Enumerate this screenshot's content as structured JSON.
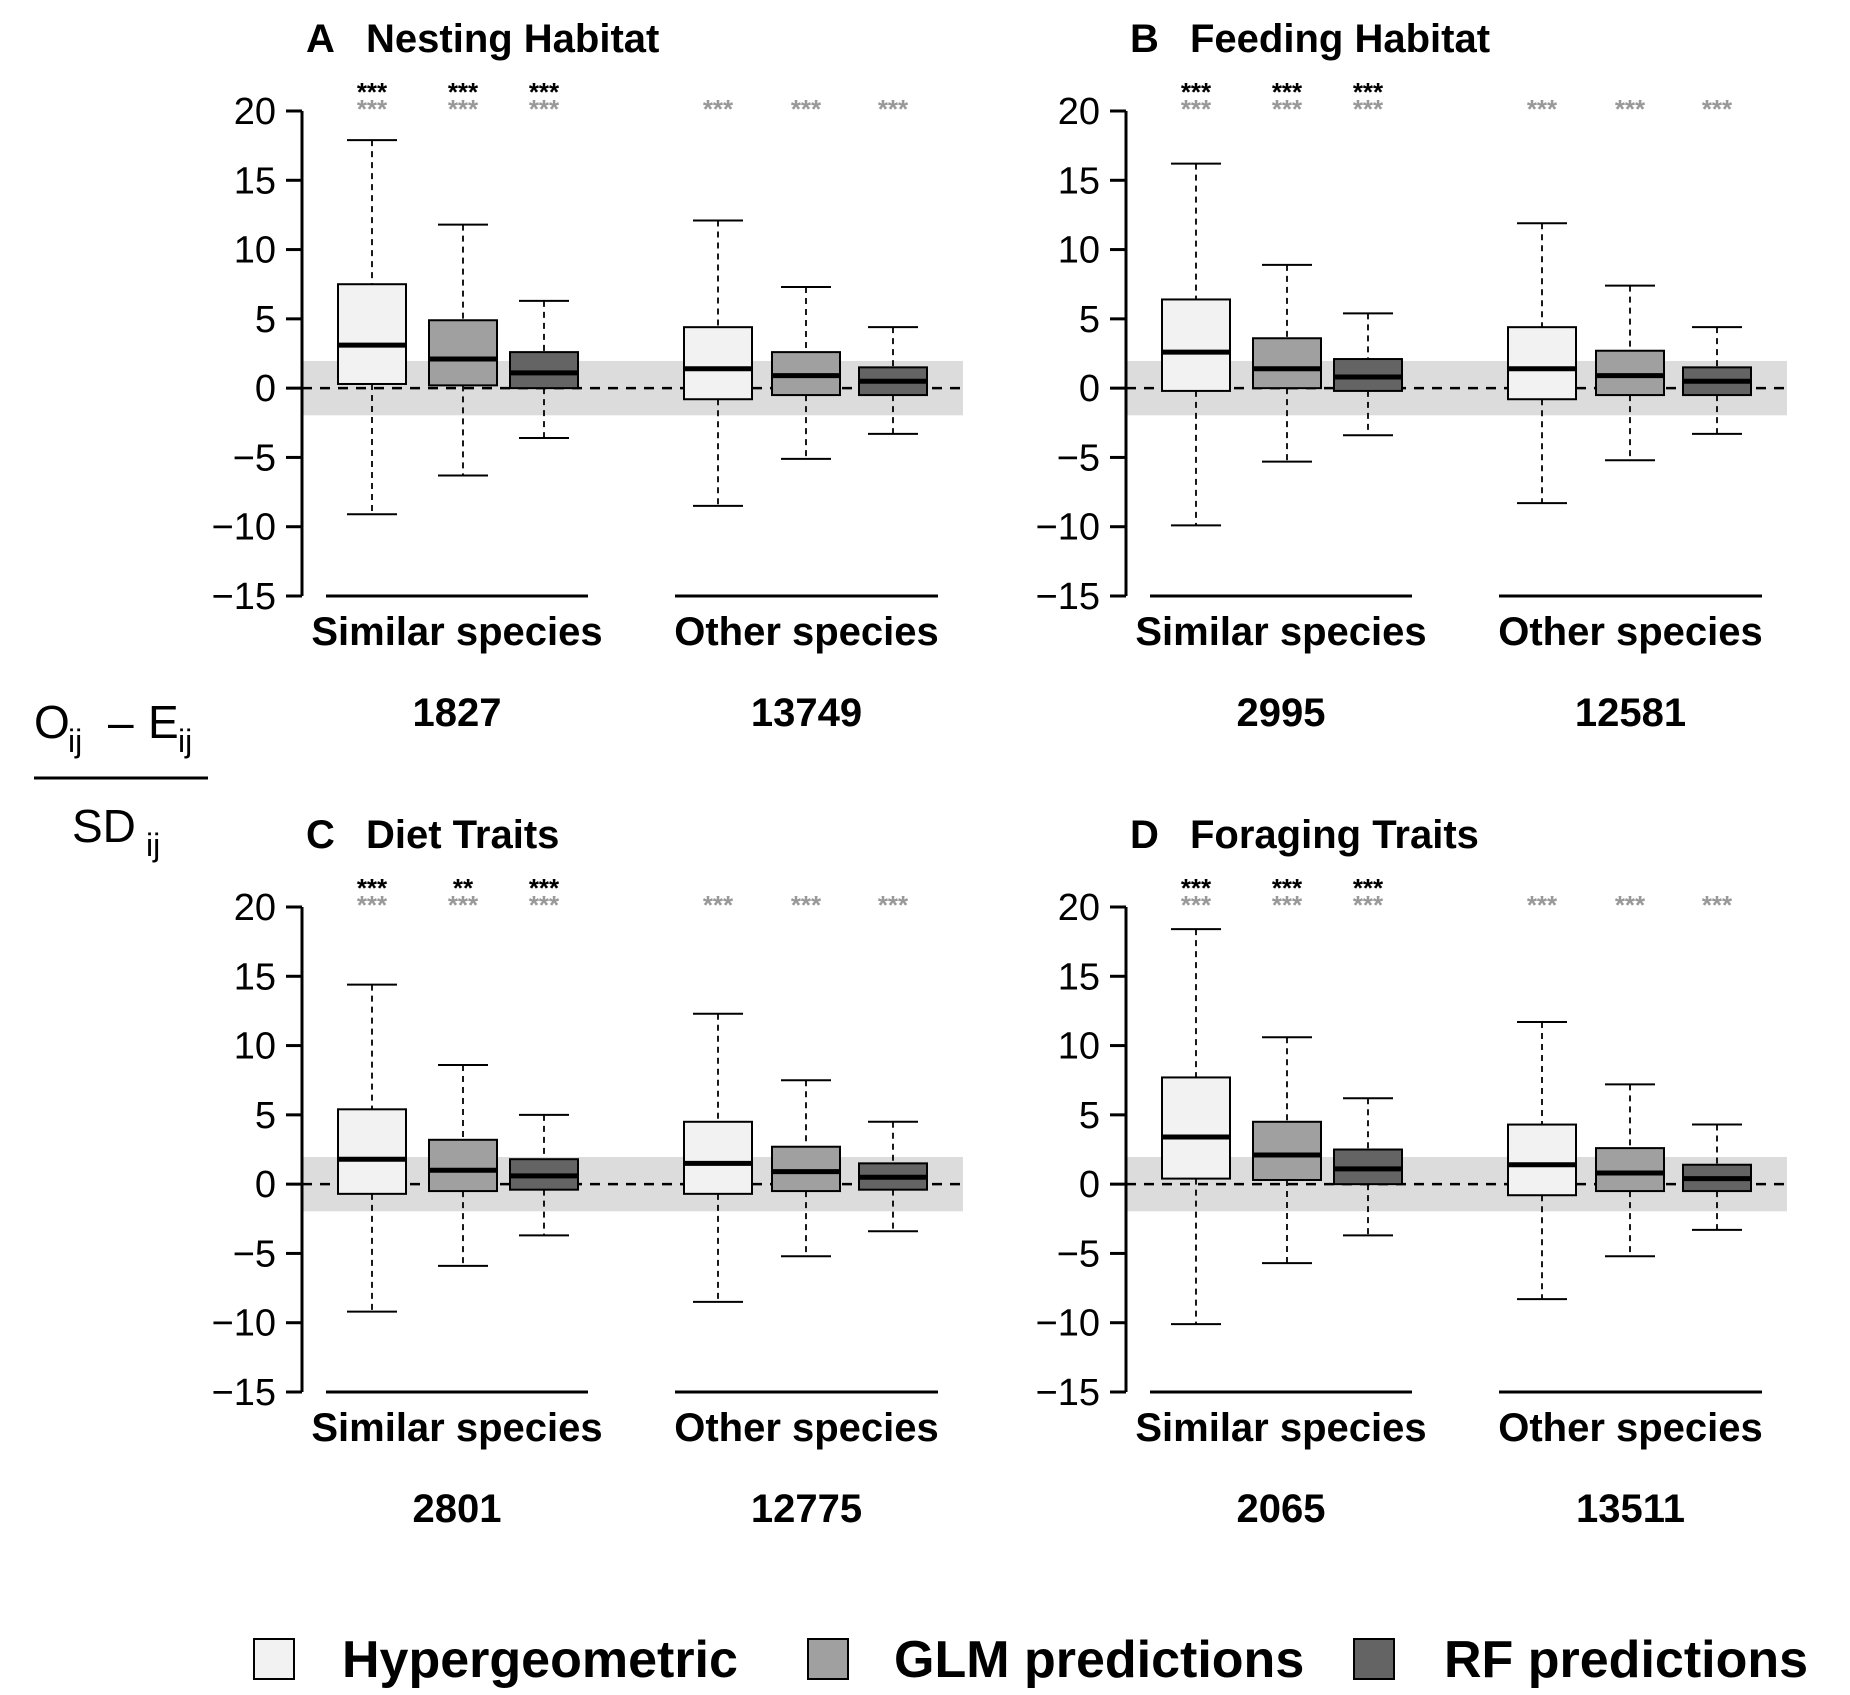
{
  "y_axis_label": {
    "numerator": {
      "o": "O",
      "o_sub": "ij",
      "dash": "–",
      "e": "E",
      "e_sub": "ij"
    },
    "denominator": {
      "sd": "SD",
      "sd_sub": "ij"
    }
  },
  "legend": [
    {
      "label": "Hypergeometric",
      "color": "#f2f2f2"
    },
    {
      "label": "GLM predictions",
      "color": "#a0a0a0"
    },
    {
      "label": "RF predictions",
      "color": "#646464"
    }
  ],
  "chart_data": [
    {
      "type": "boxplot",
      "letter": "A",
      "title": "Nesting Habitat",
      "ylim": [
        -15,
        20
      ],
      "yticks": [
        20,
        15,
        10,
        5,
        0,
        -5,
        -10,
        -15
      ],
      "null_band": [
        -1.96,
        1.96
      ],
      "groups": [
        {
          "label": "Similar species",
          "n": "1827",
          "boxes": [
            {
              "series": "Hypergeometric",
              "min": -9.1,
              "q1": 0.3,
              "median": 3.1,
              "q3": 7.5,
              "max": 17.9,
              "sig_top": "***",
              "sig_bottom": "***"
            },
            {
              "series": "GLM predictions",
              "min": -6.3,
              "q1": 0.2,
              "median": 2.1,
              "q3": 4.9,
              "max": 11.8,
              "sig_top": "***",
              "sig_bottom": "***"
            },
            {
              "series": "RF predictions",
              "min": -3.6,
              "q1": 0.0,
              "median": 1.1,
              "q3": 2.6,
              "max": 6.3,
              "sig_top": "***",
              "sig_bottom": "***"
            }
          ]
        },
        {
          "label": "Other species",
          "n": "13749",
          "boxes": [
            {
              "series": "Hypergeometric",
              "min": -8.5,
              "q1": -0.8,
              "median": 1.4,
              "q3": 4.4,
              "max": 12.1,
              "sig_top": "",
              "sig_bottom": "***"
            },
            {
              "series": "GLM predictions",
              "min": -5.1,
              "q1": -0.5,
              "median": 0.9,
              "q3": 2.6,
              "max": 7.3,
              "sig_top": "",
              "sig_bottom": "***"
            },
            {
              "series": "RF predictions",
              "min": -3.3,
              "q1": -0.5,
              "median": 0.5,
              "q3": 1.5,
              "max": 4.4,
              "sig_top": "",
              "sig_bottom": "***"
            }
          ]
        }
      ]
    },
    {
      "type": "boxplot",
      "letter": "B",
      "title": "Feeding Habitat",
      "ylim": [
        -15,
        20
      ],
      "yticks": [
        20,
        15,
        10,
        5,
        0,
        -5,
        -10,
        -15
      ],
      "null_band": [
        -1.96,
        1.96
      ],
      "groups": [
        {
          "label": "Similar species",
          "n": "2995",
          "boxes": [
            {
              "series": "Hypergeometric",
              "min": -9.9,
              "q1": -0.2,
              "median": 2.6,
              "q3": 6.4,
              "max": 16.2,
              "sig_top": "***",
              "sig_bottom": "***"
            },
            {
              "series": "GLM predictions",
              "min": -5.3,
              "q1": 0.0,
              "median": 1.4,
              "q3": 3.6,
              "max": 8.9,
              "sig_top": "***",
              "sig_bottom": "***"
            },
            {
              "series": "RF predictions",
              "min": -3.4,
              "q1": -0.2,
              "median": 0.8,
              "q3": 2.1,
              "max": 5.4,
              "sig_top": "***",
              "sig_bottom": "***"
            }
          ]
        },
        {
          "label": "Other species",
          "n": "12581",
          "boxes": [
            {
              "series": "Hypergeometric",
              "min": -8.3,
              "q1": -0.8,
              "median": 1.4,
              "q3": 4.4,
              "max": 11.9,
              "sig_top": "",
              "sig_bottom": "***"
            },
            {
              "series": "GLM predictions",
              "min": -5.2,
              "q1": -0.5,
              "median": 0.9,
              "q3": 2.7,
              "max": 7.4,
              "sig_top": "",
              "sig_bottom": "***"
            },
            {
              "series": "RF predictions",
              "min": -3.3,
              "q1": -0.5,
              "median": 0.5,
              "q3": 1.5,
              "max": 4.4,
              "sig_top": "",
              "sig_bottom": "***"
            }
          ]
        }
      ]
    },
    {
      "type": "boxplot",
      "letter": "C",
      "title": "Diet Traits",
      "ylim": [
        -15,
        20
      ],
      "yticks": [
        20,
        15,
        10,
        5,
        0,
        -5,
        -10,
        -15
      ],
      "null_band": [
        -1.96,
        1.96
      ],
      "groups": [
        {
          "label": "Similar species",
          "n": "2801",
          "boxes": [
            {
              "series": "Hypergeometric",
              "min": -9.2,
              "q1": -0.7,
              "median": 1.8,
              "q3": 5.4,
              "max": 14.4,
              "sig_top": "***",
              "sig_bottom": "***"
            },
            {
              "series": "GLM predictions",
              "min": -5.9,
              "q1": -0.5,
              "median": 1.0,
              "q3": 3.2,
              "max": 8.6,
              "sig_top": "**",
              "sig_bottom": "***"
            },
            {
              "series": "RF predictions",
              "min": -3.7,
              "q1": -0.4,
              "median": 0.6,
              "q3": 1.8,
              "max": 5.0,
              "sig_top": "***",
              "sig_bottom": "***"
            }
          ]
        },
        {
          "label": "Other species",
          "n": "12775",
          "boxes": [
            {
              "series": "Hypergeometric",
              "min": -8.5,
              "q1": -0.7,
              "median": 1.5,
              "q3": 4.5,
              "max": 12.3,
              "sig_top": "",
              "sig_bottom": "***"
            },
            {
              "series": "GLM predictions",
              "min": -5.2,
              "q1": -0.5,
              "median": 0.9,
              "q3": 2.7,
              "max": 7.5,
              "sig_top": "",
              "sig_bottom": "***"
            },
            {
              "series": "RF predictions",
              "min": -3.4,
              "q1": -0.4,
              "median": 0.5,
              "q3": 1.5,
              "max": 4.5,
              "sig_top": "",
              "sig_bottom": "***"
            }
          ]
        }
      ]
    },
    {
      "type": "boxplot",
      "letter": "D",
      "title": "Foraging Traits",
      "ylim": [
        -15,
        20
      ],
      "yticks": [
        20,
        15,
        10,
        5,
        0,
        -5,
        -10,
        -15
      ],
      "null_band": [
        -1.96,
        1.96
      ],
      "groups": [
        {
          "label": "Similar species",
          "n": "2065",
          "boxes": [
            {
              "series": "Hypergeometric",
              "min": -10.1,
              "q1": 0.4,
              "median": 3.4,
              "q3": 7.7,
              "max": 18.4,
              "sig_top": "***",
              "sig_bottom": "***"
            },
            {
              "series": "GLM predictions",
              "min": -5.7,
              "q1": 0.3,
              "median": 2.1,
              "q3": 4.5,
              "max": 10.6,
              "sig_top": "***",
              "sig_bottom": "***"
            },
            {
              "series": "RF predictions",
              "min": -3.7,
              "q1": 0.0,
              "median": 1.1,
              "q3": 2.5,
              "max": 6.2,
              "sig_top": "***",
              "sig_bottom": "***"
            }
          ]
        },
        {
          "label": "Other species",
          "n": "13511",
          "boxes": [
            {
              "series": "Hypergeometric",
              "min": -8.3,
              "q1": -0.8,
              "median": 1.4,
              "q3": 4.3,
              "max": 11.7,
              "sig_top": "",
              "sig_bottom": "***"
            },
            {
              "series": "GLM predictions",
              "min": -5.2,
              "q1": -0.5,
              "median": 0.8,
              "q3": 2.6,
              "max": 7.2,
              "sig_top": "",
              "sig_bottom": "***"
            },
            {
              "series": "RF predictions",
              "min": -3.3,
              "q1": -0.5,
              "median": 0.4,
              "q3": 1.4,
              "max": 4.3,
              "sig_top": "",
              "sig_bottom": "***"
            }
          ]
        }
      ]
    }
  ]
}
